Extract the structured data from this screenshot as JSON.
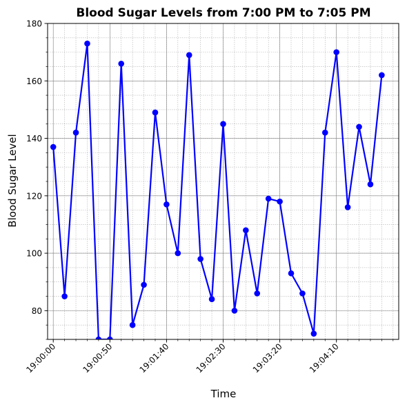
{
  "chart_data": {
    "type": "line",
    "title": "Blood Sugar Levels from 7:00 PM to 7:05 PM",
    "xlabel": "Time",
    "ylabel": "Blood Sugar Level",
    "x": [
      "19:00:00",
      "19:00:10",
      "19:00:20",
      "19:00:30",
      "19:00:40",
      "19:00:50",
      "19:01:00",
      "19:01:10",
      "19:01:20",
      "19:01:30",
      "19:01:40",
      "19:01:50",
      "19:02:00",
      "19:02:10",
      "19:02:20",
      "19:02:30",
      "19:02:40",
      "19:02:50",
      "19:03:00",
      "19:03:10",
      "19:03:20",
      "19:03:30",
      "19:03:40",
      "19:03:50",
      "19:04:00",
      "19:04:10",
      "19:04:20",
      "19:04:30",
      "19:04:40",
      "19:04:50"
    ],
    "series": [
      {
        "values": [
          137,
          85,
          142,
          173,
          70,
          70,
          166,
          75,
          89,
          149,
          117,
          100,
          169,
          98,
          84,
          145,
          80,
          108,
          86,
          119,
          118,
          93,
          86,
          72,
          142,
          170,
          116,
          144,
          124,
          162
        ],
        "color": "#0000ff",
        "marker": "circle"
      }
    ],
    "xlim": [
      "18:59:55",
      "19:05:05"
    ],
    "ylim": [
      70,
      180
    ],
    "x_ticks": [
      "19:00:00",
      "19:00:50",
      "19:01:40",
      "19:02:30",
      "19:03:20",
      "19:04:10"
    ],
    "y_ticks": [
      80,
      100,
      120,
      140,
      160,
      180
    ],
    "y_minor_step": 5,
    "x_minor_step_seconds": 10,
    "grid": true,
    "legend": "none"
  }
}
